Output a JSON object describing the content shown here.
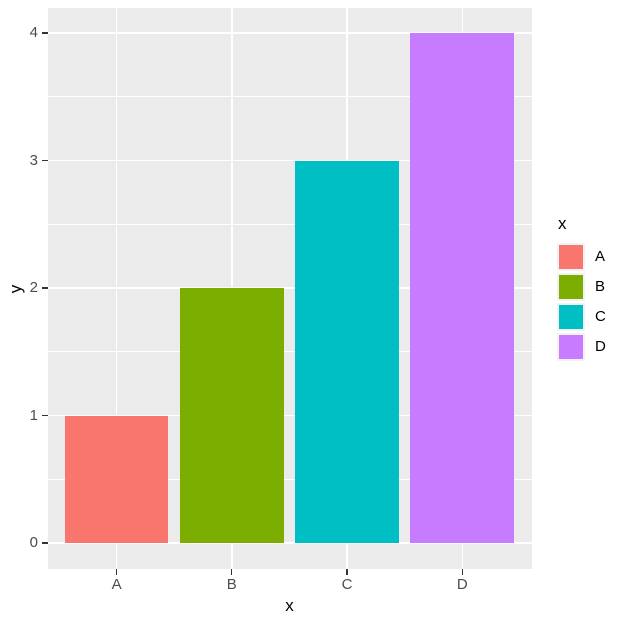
{
  "chart_data": {
    "type": "bar",
    "title": "",
    "categories": [
      "A",
      "B",
      "C",
      "D"
    ],
    "values": [
      1,
      2,
      3,
      4
    ],
    "bar_colors": [
      "#F8766D",
      "#7CAE00",
      "#00BFC4",
      "#C77CFF"
    ],
    "xlabel": "x",
    "ylabel": "y",
    "x_tick_labels": [
      "A",
      "B",
      "C",
      "D"
    ],
    "y_tick_labels": [
      "0",
      "1",
      "2",
      "3",
      "4"
    ],
    "yticks": [
      0,
      1,
      2,
      3,
      4
    ],
    "y_minor_breaks": [
      0.5,
      1.5,
      2.5,
      3.5
    ],
    "ylim": [
      -0.2,
      4.2
    ],
    "grid": "on",
    "legend": {
      "position": "right",
      "title": "x",
      "entries": [
        {
          "label": "A",
          "color": "#F8766D"
        },
        {
          "label": "B",
          "color": "#7CAE00"
        },
        {
          "label": "C",
          "color": "#00BFC4"
        },
        {
          "label": "D",
          "color": "#C77CFF"
        }
      ]
    },
    "colors": {
      "figure_background": "#FFFFFF",
      "panel_background": "#EBEBEB",
      "gridline": "#FFFFFF",
      "axis_text": "#4D4D4D",
      "axis_title": "#000000",
      "tick_mark": "#333333",
      "legend_key_background": "#F2F2F2"
    }
  }
}
